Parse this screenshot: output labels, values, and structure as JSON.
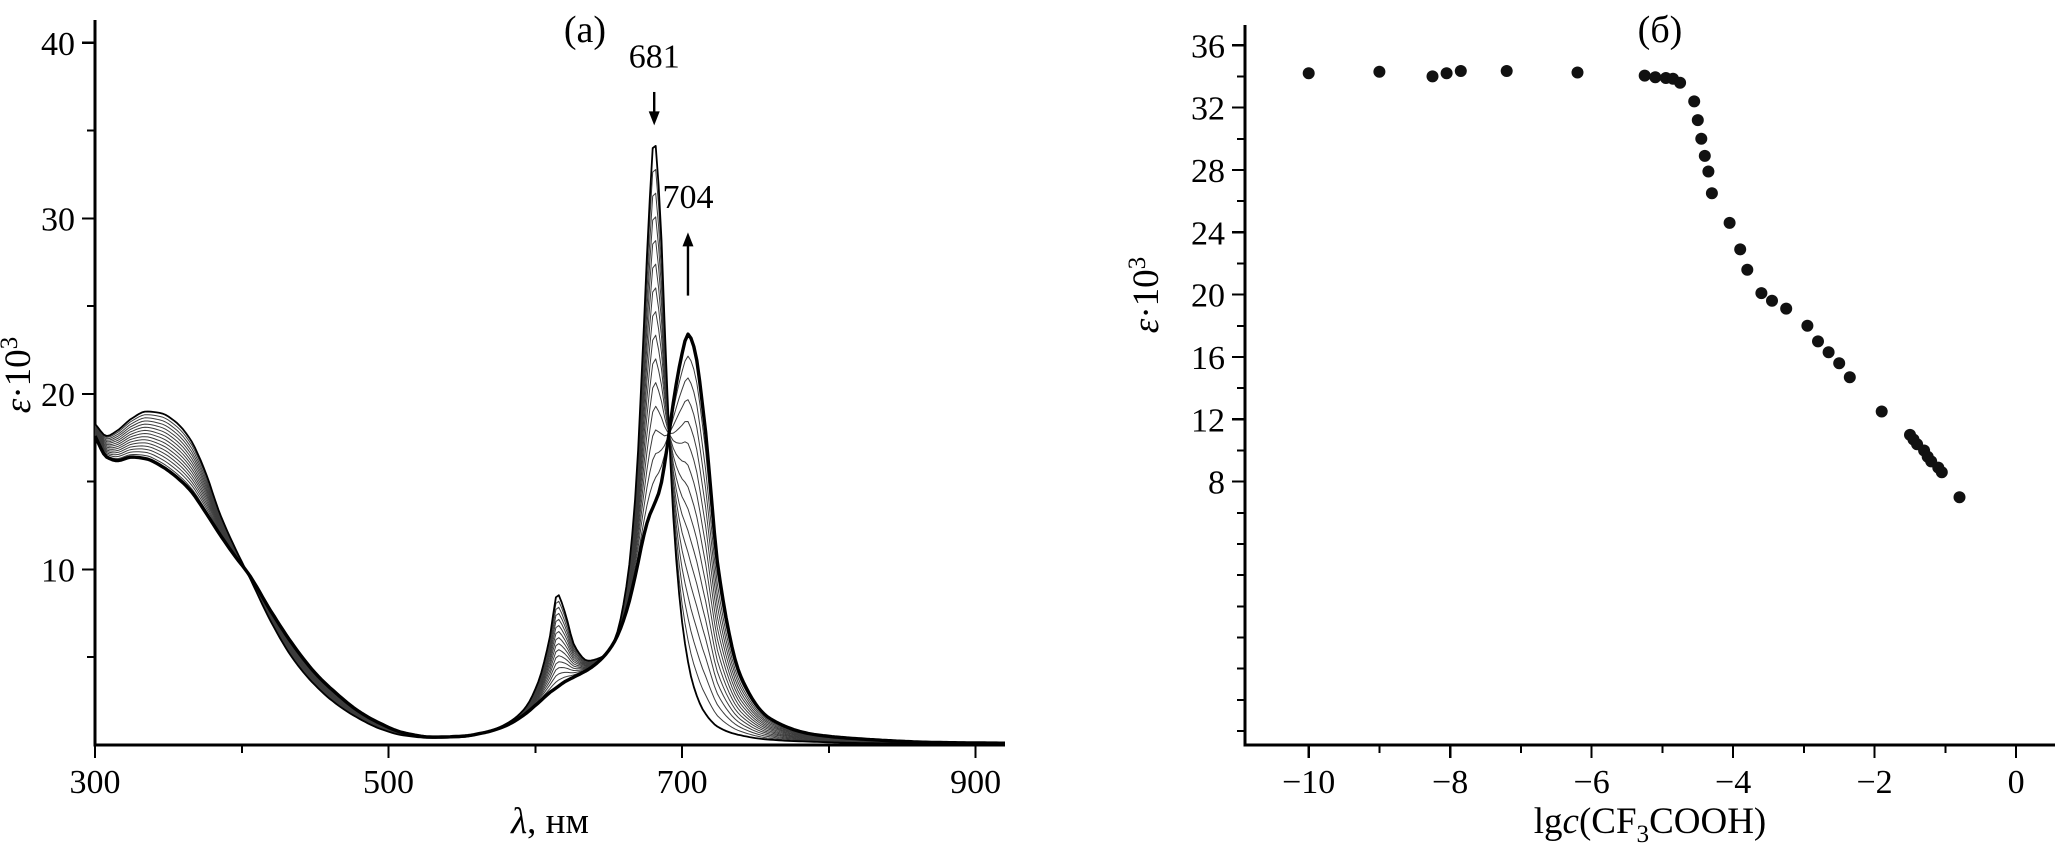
{
  "figure": {
    "background": "#ffffff",
    "panels": [
      {
        "label": "(а)"
      },
      {
        "label": "(б)"
      }
    ]
  },
  "chart_data": [
    {
      "id": "chart-a",
      "type": "line",
      "panel_label": "(а)",
      "xlabel_parts": [
        {
          "t": "λ",
          "italic": true
        },
        {
          "t": ", нм"
        }
      ],
      "ylabel_parts": [
        {
          "t": "ε",
          "italic": true
        },
        {
          "t": "·10"
        },
        {
          "t": "3",
          "sup": true
        }
      ],
      "xlim": [
        300,
        920
      ],
      "ylim": [
        0,
        41.3
      ],
      "x_major_ticks": [
        300,
        500,
        700,
        900
      ],
      "x_minor_ticks": [
        400,
        600,
        800
      ],
      "y_major_ticks": [
        10,
        20,
        30,
        40
      ],
      "y_minor_ticks": [
        5,
        15,
        25,
        35
      ],
      "line_color": "#000000",
      "intermediate_color": "#3c3c3c",
      "n_intermediate_curves": 14,
      "annotations": [
        {
          "text": "681",
          "x": 681,
          "label_y": 38.6,
          "arrow_from_y": 37.2,
          "arrow_to_y": 35.3
        },
        {
          "text": "704",
          "x": 704,
          "label_y": 30.6,
          "arrow_from_y": 25.6,
          "arrow_to_y": 29.2
        }
      ],
      "series": [
        {
          "name": "initial-spectrum",
          "role": "start",
          "points": [
            [
              300,
              18.3
            ],
            [
              308,
              17.6
            ],
            [
              315,
              17.9
            ],
            [
              325,
              18.6
            ],
            [
              335,
              19.0
            ],
            [
              345,
              18.9
            ],
            [
              355,
              18.4
            ],
            [
              365,
              17.4
            ],
            [
              375,
              15.6
            ],
            [
              385,
              13.2
            ],
            [
              395,
              11.3
            ],
            [
              405,
              9.6
            ],
            [
              420,
              7.0
            ],
            [
              435,
              4.9
            ],
            [
              450,
              3.4
            ],
            [
              465,
              2.3
            ],
            [
              480,
              1.5
            ],
            [
              495,
              0.9
            ],
            [
              510,
              0.55
            ],
            [
              530,
              0.4
            ],
            [
              550,
              0.45
            ],
            [
              565,
              0.7
            ],
            [
              580,
              1.2
            ],
            [
              592,
              2.0
            ],
            [
              602,
              3.6
            ],
            [
              610,
              6.2
            ],
            [
              615,
              8.6
            ],
            [
              620,
              7.6
            ],
            [
              627,
              5.6
            ],
            [
              636,
              4.8
            ],
            [
              645,
              5.0
            ],
            [
              654,
              6.0
            ],
            [
              662,
              9.0
            ],
            [
              668,
              14.0
            ],
            [
              673,
              22.0
            ],
            [
              677,
              29.5
            ],
            [
              681,
              34.5
            ],
            [
              685,
              30.5
            ],
            [
              689,
              22.0
            ],
            [
              694,
              13.0
            ],
            [
              700,
              7.0
            ],
            [
              707,
              3.6
            ],
            [
              715,
              1.9
            ],
            [
              725,
              1.0
            ],
            [
              740,
              0.55
            ],
            [
              760,
              0.3
            ],
            [
              790,
              0.18
            ],
            [
              830,
              0.1
            ],
            [
              870,
              0.07
            ],
            [
              920,
              0.05
            ]
          ]
        },
        {
          "name": "final-spectrum",
          "role": "end",
          "points": [
            [
              300,
              17.6
            ],
            [
              308,
              16.4
            ],
            [
              315,
              16.2
            ],
            [
              325,
              16.4
            ],
            [
              335,
              16.3
            ],
            [
              345,
              15.9
            ],
            [
              355,
              15.3
            ],
            [
              365,
              14.5
            ],
            [
              375,
              13.3
            ],
            [
              385,
              12.0
            ],
            [
              395,
              10.8
            ],
            [
              405,
              9.7
            ],
            [
              420,
              7.6
            ],
            [
              435,
              5.7
            ],
            [
              450,
              4.1
            ],
            [
              465,
              2.9
            ],
            [
              480,
              1.9
            ],
            [
              495,
              1.2
            ],
            [
              510,
              0.7
            ],
            [
              530,
              0.45
            ],
            [
              550,
              0.5
            ],
            [
              565,
              0.7
            ],
            [
              580,
              1.1
            ],
            [
              592,
              1.7
            ],
            [
              602,
              2.4
            ],
            [
              610,
              3.0
            ],
            [
              615,
              3.3
            ],
            [
              620,
              3.6
            ],
            [
              627,
              3.9
            ],
            [
              636,
              4.3
            ],
            [
              645,
              4.9
            ],
            [
              654,
              5.9
            ],
            [
              662,
              7.6
            ],
            [
              668,
              9.6
            ],
            [
              673,
              11.6
            ],
            [
              677,
              12.9
            ],
            [
              681,
              13.7
            ],
            [
              685,
              14.6
            ],
            [
              689,
              16.5
            ],
            [
              694,
              19.5
            ],
            [
              700,
              22.3
            ],
            [
              704,
              23.4
            ],
            [
              708,
              22.7
            ],
            [
              715,
              18.6
            ],
            [
              725,
              9.8
            ],
            [
              740,
              3.9
            ],
            [
              760,
              1.5
            ],
            [
              790,
              0.6
            ],
            [
              830,
              0.3
            ],
            [
              870,
              0.15
            ],
            [
              920,
              0.1
            ]
          ]
        }
      ]
    },
    {
      "id": "chart-b",
      "type": "scatter",
      "panel_label": "(б)",
      "xlabel_parts": [
        {
          "t": "lg"
        },
        {
          "t": "c",
          "italic": true
        },
        {
          "t": "(CF"
        },
        {
          "t": "3",
          "sub": true
        },
        {
          "t": "COOH)"
        }
      ],
      "ylabel_parts": [
        {
          "t": "ε",
          "italic": true
        },
        {
          "t": "·10"
        },
        {
          "t": "3",
          "sup": true
        }
      ],
      "xlim": [
        -10.9,
        0.55
      ],
      "ylim": [
        -8.9,
        37.3
      ],
      "x_major_ticks": [
        -10,
        -8,
        -6,
        -4,
        -2,
        0
      ],
      "x_minor_ticks": [
        -9,
        -7,
        -5,
        -3,
        -1
      ],
      "y_major_ticks": [
        8,
        12,
        16,
        20,
        24,
        28,
        32,
        36
      ],
      "y_minor_ticks": [
        -8,
        -6,
        -4,
        -2,
        0,
        2,
        4,
        6,
        10,
        14,
        18,
        22,
        26,
        30,
        34
      ],
      "marker": {
        "shape": "circle",
        "radius_px": 6,
        "color": "#111111"
      },
      "points": [
        [
          -10,
          34.2
        ],
        [
          -9,
          34.3
        ],
        [
          -8.25,
          34.0
        ],
        [
          -8.05,
          34.2
        ],
        [
          -7.85,
          34.35
        ],
        [
          -7.2,
          34.35
        ],
        [
          -6.2,
          34.25
        ],
        [
          -5.25,
          34.05
        ],
        [
          -5.1,
          33.95
        ],
        [
          -4.95,
          33.9
        ],
        [
          -4.85,
          33.85
        ],
        [
          -4.75,
          33.6
        ],
        [
          -4.55,
          32.4
        ],
        [
          -4.5,
          31.2
        ],
        [
          -4.45,
          30.0
        ],
        [
          -4.4,
          28.9
        ],
        [
          -4.35,
          27.9
        ],
        [
          -4.3,
          26.5
        ],
        [
          -4.05,
          24.6
        ],
        [
          -3.9,
          22.9
        ],
        [
          -3.8,
          21.6
        ],
        [
          -3.6,
          20.1
        ],
        [
          -3.45,
          19.6
        ],
        [
          -3.25,
          19.1
        ],
        [
          -2.95,
          18.0
        ],
        [
          -2.8,
          17.0
        ],
        [
          -2.65,
          16.3
        ],
        [
          -2.5,
          15.6
        ],
        [
          -2.35,
          14.7
        ],
        [
          -1.9,
          12.5
        ],
        [
          -1.5,
          11.0
        ],
        [
          -1.45,
          10.7
        ],
        [
          -1.4,
          10.4
        ],
        [
          -1.3,
          10.0
        ],
        [
          -1.25,
          9.6
        ],
        [
          -1.2,
          9.3
        ],
        [
          -1.1,
          8.9
        ],
        [
          -1.05,
          8.6
        ],
        [
          -0.8,
          7.0
        ]
      ]
    }
  ]
}
